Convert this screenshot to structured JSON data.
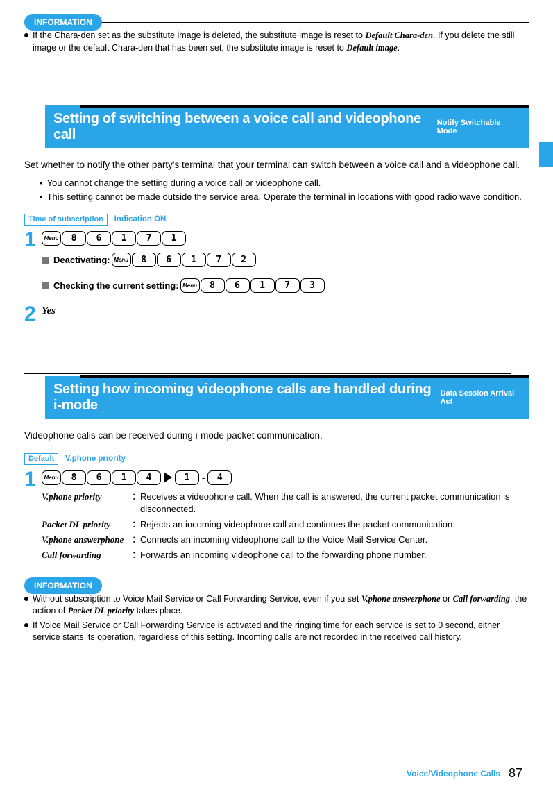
{
  "colors": {
    "accent": "#29a5e8"
  },
  "infobox1": {
    "label": "INFORMATION",
    "items": [
      "If the Chara-den set as the substitute image is deleted, the substitute image is reset to <i>Default Chara-den</i>. If you delete the still image or the default Chara-den that has been set, the substitute image is reset to <i>Default image</i>."
    ]
  },
  "section1": {
    "title": "Setting of switching between a voice call and videophone call",
    "side": "Notify Switchable Mode",
    "intro": "Set whether to notify the other party's terminal that your terminal can switch between a voice call and a videophone call.",
    "notes": [
      "You cannot change the setting during a voice call or videophone call.",
      "This setting cannot be made outside the service area. Operate the terminal in locations with good radio wave condition."
    ],
    "badge": "Time of subscription",
    "badge_value": "Indication ON",
    "step1": {
      "main_keys": [
        "Menu",
        "8",
        "6",
        "1",
        "7",
        "1"
      ],
      "deact_label": "Deactivating:",
      "deact_keys": [
        "Menu",
        "8",
        "6",
        "1",
        "7",
        "2"
      ],
      "check_label": "Checking the current setting:",
      "check_keys": [
        "Menu",
        "8",
        "6",
        "1",
        "7",
        "3"
      ]
    },
    "step2": "Yes"
  },
  "section2": {
    "title": "Setting how incoming videophone calls are handled during i-mode",
    "side": "Data Session Arrival Act",
    "intro": "Videophone calls can be received during i-mode packet communication.",
    "badge": "Default",
    "badge_value": "V.phone priority",
    "step1": {
      "keys_a": [
        "Menu",
        "8",
        "6",
        "1",
        "4"
      ],
      "keys_b": [
        "1"
      ],
      "keys_c": [
        "4"
      ],
      "defs": [
        {
          "term": "V.phone priority",
          "desc": "Receives a videophone call. When the call is answered, the current packet communication is disconnected."
        },
        {
          "term": "Packet DL priority",
          "desc": "Rejects an incoming videophone call and continues the packet communication."
        },
        {
          "term": "V.phone answerphone",
          "desc": "Connects an incoming videophone call to the Voice Mail Service Center."
        },
        {
          "term": "Call forwarding",
          "desc": "Forwards an incoming videophone call to the forwarding phone number."
        }
      ]
    }
  },
  "infobox2": {
    "label": "INFORMATION",
    "items": [
      "Without subscription to Voice Mail Service or Call Forwarding Service, even if you set <i>V.phone answerphone</i> or <i>Call forwarding</i>, the action of <i>Packet DL priority</i> takes place.",
      "If Voice Mail Service or Call Forwarding Service is activated and the ringing time for each service is set to 0 second, either service starts its operation, regardless of this setting. Incoming calls are not recorded in the received call history."
    ]
  },
  "footer": {
    "section": "Voice/Videophone Calls",
    "page": "87"
  }
}
